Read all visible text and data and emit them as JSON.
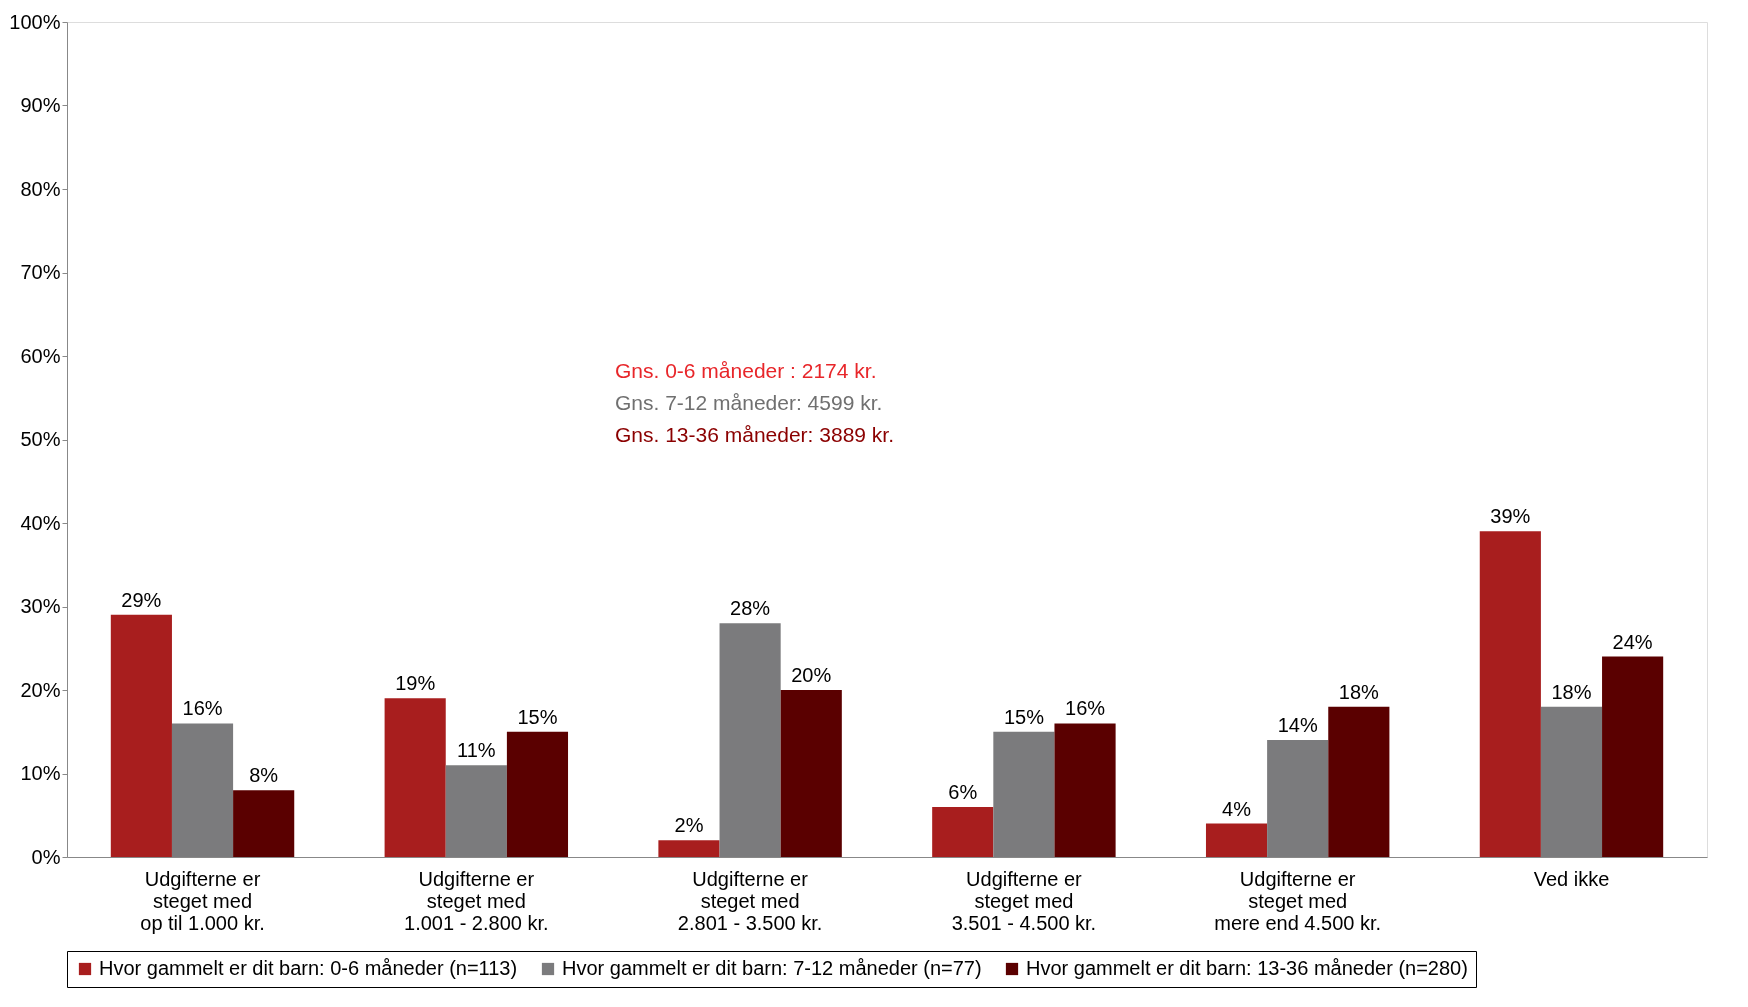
{
  "chart_data": {
    "type": "bar",
    "categories": [
      "Udgifterne er\nsteget med\nop til 1.000 kr.",
      "Udgifterne er\nsteget med\n1.001 - 2.800 kr.",
      "Udgifterne er\nsteget med\n2.801 - 3.500 kr.",
      "Udgifterne er\nsteget med\n3.501 - 4.500 kr.",
      "Udgifterne er\nsteget med\nmere end 4.500 kr.",
      "Ved ikke"
    ],
    "series": [
      {
        "name": "Hvor gammelt er dit barn: 0-6 måneder (n=113)",
        "color": "#a81e1e",
        "values": [
          29,
          19,
          2,
          6,
          4,
          39
        ],
        "value_labels": [
          "29%",
          "19%",
          "2%",
          "6%",
          "4%",
          "39%"
        ]
      },
      {
        "name": "Hvor gammelt er dit barn: 7-12 måneder (n=77)",
        "color": "#7b7b7d",
        "values": [
          16,
          11,
          28,
          15,
          14,
          18
        ],
        "value_labels": [
          "16%",
          "11%",
          "28%",
          "15%",
          "14%",
          "18%"
        ]
      },
      {
        "name": "Hvor gammelt er dit barn: 13-36 måneder (n=280)",
        "color": "#5a0000",
        "values": [
          8,
          15,
          20,
          16,
          18,
          24
        ],
        "value_labels": [
          "8%",
          "15%",
          "20%",
          "16%",
          "18%",
          "24%"
        ]
      }
    ],
    "ylim": [
      0,
      100
    ],
    "yticks": [
      {
        "value": 0,
        "label": "0%"
      },
      {
        "value": 10,
        "label": "10%"
      },
      {
        "value": 20,
        "label": "20%"
      },
      {
        "value": 30,
        "label": "30%"
      },
      {
        "value": 40,
        "label": "40%"
      },
      {
        "value": 50,
        "label": "50%"
      },
      {
        "value": 60,
        "label": "60%"
      },
      {
        "value": 70,
        "label": "70%"
      },
      {
        "value": 80,
        "label": "80%"
      },
      {
        "value": 90,
        "label": "90%"
      },
      {
        "value": 100,
        "label": "100%"
      }
    ],
    "grid": false,
    "legend": "bottom",
    "annotations": [
      "Gns. 0-6 måneder : 2174 kr.",
      "Gns. 7-12 måneder: 4599 kr.",
      "Gns. 13-36 måneder: 3889 kr."
    ]
  }
}
